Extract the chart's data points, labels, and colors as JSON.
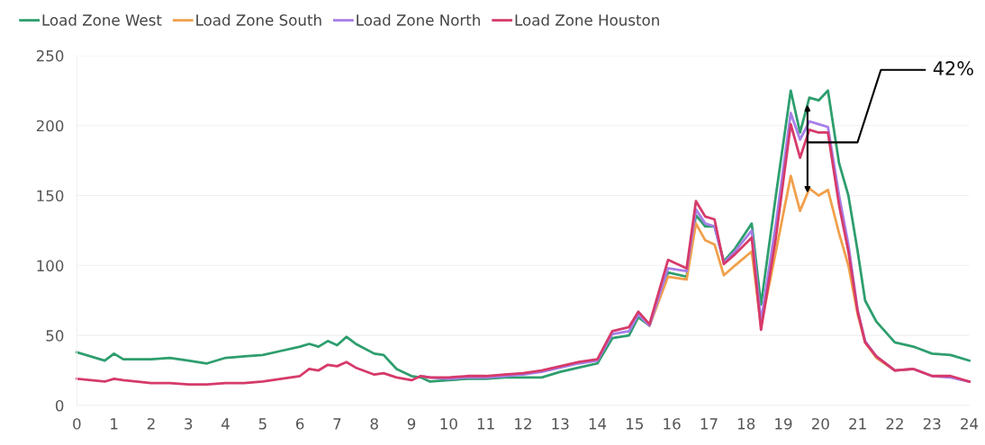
{
  "chart_data": {
    "type": "line",
    "x": [
      0,
      0.75,
      1,
      1.25,
      2,
      2.5,
      3,
      3.5,
      4,
      4.5,
      5,
      5.5,
      6,
      6.25,
      6.5,
      6.75,
      7,
      7.25,
      7.5,
      8,
      8.25,
      8.6,
      9,
      9.25,
      9.5,
      10,
      10.5,
      11,
      11.5,
      12,
      12.5,
      13,
      13.5,
      14,
      14.4,
      14.85,
      15.1,
      15.4,
      15.9,
      16.4,
      16.65,
      16.9,
      17.15,
      17.4,
      17.7,
      18.15,
      18.4,
      18.8,
      19.2,
      19.45,
      19.7,
      19.95,
      20.2,
      20.5,
      20.75,
      21,
      21.2,
      21.5,
      22,
      22.5,
      23,
      23.5,
      24
    ],
    "series": [
      {
        "name": "Load Zone West",
        "color": "#2e9e6e",
        "values": [
          38,
          32,
          37,
          33,
          33,
          34,
          32,
          30,
          34,
          35,
          36,
          39,
          42,
          44,
          42,
          46,
          43,
          49,
          44,
          37,
          36,
          26,
          21,
          20,
          17,
          18,
          19,
          19,
          20,
          20,
          20,
          24,
          27,
          30,
          48,
          50,
          63,
          57,
          95,
          92,
          136,
          128,
          128,
          103,
          112,
          130,
          72,
          150,
          225,
          195,
          220,
          218,
          225,
          173,
          150,
          110,
          75,
          60,
          45,
          42,
          37,
          36,
          32
        ]
      },
      {
        "name": "Load Zone South",
        "color": "#f0a04b",
        "values": [
          null,
          null,
          null,
          null,
          null,
          null,
          null,
          null,
          null,
          null,
          null,
          null,
          null,
          null,
          null,
          null,
          null,
          null,
          null,
          null,
          null,
          null,
          null,
          null,
          null,
          null,
          null,
          null,
          null,
          null,
          null,
          null,
          null,
          null,
          null,
          null,
          null,
          57,
          92,
          90,
          130,
          118,
          115,
          93,
          100,
          110,
          57,
          110,
          164,
          139,
          155,
          150,
          154,
          123,
          100,
          65,
          45,
          34,
          25,
          26,
          null,
          null,
          null
        ]
      },
      {
        "name": "Load Zone North",
        "color": "#a77ee8",
        "values": [
          null,
          null,
          null,
          null,
          null,
          null,
          null,
          null,
          null,
          null,
          null,
          null,
          null,
          null,
          null,
          null,
          null,
          null,
          null,
          null,
          null,
          null,
          null,
          21,
          20,
          19,
          20,
          20,
          21,
          22,
          24,
          27,
          30,
          32,
          51,
          53,
          65,
          57,
          98,
          96,
          140,
          130,
          128,
          102,
          110,
          125,
          60,
          130,
          209,
          190,
          203,
          201,
          199,
          150,
          115,
          68,
          46,
          35,
          25,
          26,
          21,
          20,
          17
        ]
      },
      {
        "name": "Load Zone Houston",
        "color": "#d63a6a",
        "values": [
          19,
          17,
          19,
          18,
          16,
          16,
          15,
          15,
          16,
          16,
          17,
          19,
          21,
          26,
          25,
          29,
          28,
          31,
          27,
          22,
          23,
          20,
          18,
          21,
          20,
          20,
          21,
          21,
          22,
          23,
          25,
          28,
          31,
          33,
          53,
          56,
          67,
          58,
          104,
          98,
          146,
          135,
          133,
          101,
          108,
          120,
          54,
          120,
          201,
          177,
          197,
          195,
          195,
          143,
          110,
          67,
          45,
          35,
          25,
          26,
          21,
          21,
          17
        ]
      }
    ],
    "xlim": [
      0,
      24
    ],
    "ylim": [
      0,
      250
    ],
    "xticks": [
      0,
      1,
      2,
      3,
      4,
      5,
      6,
      7,
      8,
      9,
      10,
      11,
      12,
      13,
      14,
      15,
      16,
      17,
      18,
      19,
      20,
      21,
      22,
      23,
      24
    ],
    "yticks": [
      0,
      50,
      100,
      150,
      200,
      250
    ],
    "grid": "y",
    "legend": "top left",
    "marker": "none",
    "line_style": "solid",
    "annotations": [
      {
        "text": "42%",
        "x": 19.65,
        "y": 188
      }
    ]
  }
}
